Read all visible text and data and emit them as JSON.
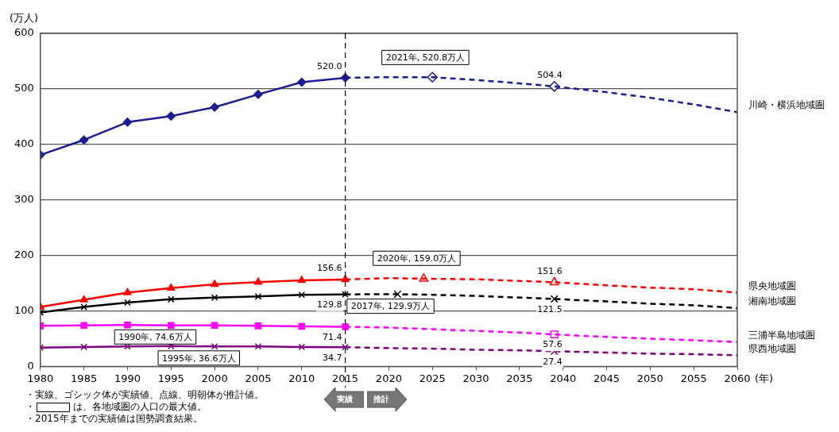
{
  "chart_data": {
    "type": "line",
    "ylabel": "(万人)",
    "xlabel": "(年)",
    "xlim": [
      1980,
      2060
    ],
    "xticks": [
      1980,
      1985,
      1990,
      1995,
      2000,
      2005,
      2010,
      2015,
      2020,
      2025,
      2030,
      2035,
      2040,
      2045,
      2050,
      2055,
      2060
    ],
    "ylim": [
      0,
      600
    ],
    "yticks": [
      0,
      100,
      200,
      300,
      400,
      500,
      600
    ],
    "grid": "y",
    "legend": false,
    "series": [
      {
        "color": "#1c1c94",
        "marker": "diamond",
        "line_style": "solid",
        "x": [
          1980,
          1985,
          1990,
          1995,
          2000,
          2005,
          2010,
          2015
        ],
        "values": [
          381,
          408,
          440,
          451,
          467,
          490,
          512,
          520.0
        ]
      },
      {
        "name": "川崎・横浜地域圏",
        "color": "#1c1c94",
        "marker": "none",
        "line_style": "dashed",
        "x": [
          2015,
          2020,
          2025,
          2030,
          2035,
          2039,
          2045,
          2050,
          2055,
          2060
        ],
        "values": [
          520.0,
          521,
          521,
          516,
          510,
          504.4,
          494,
          484,
          472,
          458
        ],
        "value_labels": [
          "520.0",
          null,
          null,
          null,
          null,
          "504.4",
          null,
          null,
          null,
          null
        ]
      },
      {
        "type": "scatter",
        "color": "#1c1c94",
        "marker": "diamond",
        "x": [
          2025,
          2039
        ],
        "values": [
          521,
          504.4
        ]
      },
      {
        "color": "#ff0000",
        "marker": "triangle",
        "line_style": "solid",
        "x": [
          1980,
          1985,
          1990,
          1995,
          2000,
          2005,
          2010,
          2015
        ],
        "values": [
          107,
          120,
          133,
          141,
          148,
          152,
          155,
          156.6
        ]
      },
      {
        "name": "県央地域圏",
        "color": "#ff0000",
        "marker": "none",
        "line_style": "dashed",
        "x": [
          2015,
          2020,
          2024,
          2030,
          2035,
          2039,
          2045,
          2050,
          2055,
          2060
        ],
        "values": [
          156.6,
          159.0,
          158,
          157,
          154,
          151.6,
          146,
          142,
          139,
          133
        ],
        "value_labels": [
          "156.6",
          null,
          null,
          null,
          null,
          "151.6",
          null,
          null,
          null,
          null
        ]
      },
      {
        "type": "scatter",
        "color": "#ff0000",
        "marker": "triangle",
        "x": [
          2024,
          2039
        ],
        "values": [
          158,
          151.6
        ]
      },
      {
        "color": "#000000",
        "marker": "cross",
        "line_style": "solid",
        "x": [
          1980,
          1985,
          1990,
          1995,
          2000,
          2005,
          2010,
          2015
        ],
        "values": [
          97,
          107,
          115,
          121,
          124,
          126,
          129,
          129.8
        ]
      },
      {
        "name": "湘南地域圏",
        "color": "#000000",
        "marker": "none",
        "line_style": "dashed",
        "x": [
          2015,
          2017,
          2021,
          2025,
          2030,
          2035,
          2039,
          2045,
          2050,
          2055,
          2060
        ],
        "values": [
          129.8,
          129.9,
          130,
          129,
          127,
          124,
          121.5,
          117,
          113,
          110,
          105
        ],
        "value_labels": [
          "129.8",
          null,
          null,
          null,
          null,
          null,
          "121.5",
          null,
          null,
          null,
          null
        ]
      },
      {
        "type": "scatter",
        "color": "#000000",
        "marker": "cross",
        "x": [
          2021,
          2039
        ],
        "values": [
          130,
          121.5
        ]
      },
      {
        "color": "#ff00ff",
        "marker": "square",
        "line_style": "solid",
        "x": [
          1980,
          1985,
          1990,
          1995,
          2000,
          2005,
          2010,
          2015
        ],
        "values": [
          73,
          74,
          74.6,
          74,
          74,
          73,
          72,
          71.4
        ]
      },
      {
        "name": "三浦半島地域圏",
        "color": "#ff00ff",
        "marker": "none",
        "line_style": "dashed",
        "x": [
          2015,
          2020,
          2025,
          2030,
          2035,
          2039,
          2045,
          2050,
          2055,
          2060
        ],
        "values": [
          71.4,
          70,
          67,
          64,
          61,
          57.6,
          53,
          50,
          47,
          44
        ],
        "value_labels": [
          "71.4",
          null,
          null,
          null,
          null,
          "57.6",
          null,
          null,
          null,
          null
        ]
      },
      {
        "type": "scatter",
        "color": "#ff00ff",
        "marker": "square",
        "x": [
          2039
        ],
        "values": [
          57.6
        ]
      },
      {
        "color": "#800080",
        "marker": "cross",
        "line_style": "solid",
        "x": [
          1980,
          1985,
          1990,
          1995,
          2000,
          2005,
          2010,
          2015
        ],
        "values": [
          34,
          35,
          36,
          36.6,
          36,
          36,
          35,
          34.7
        ]
      },
      {
        "name": "県西地域圏",
        "color": "#800080",
        "marker": "none",
        "line_style": "dashed",
        "x": [
          2015,
          2020,
          2025,
          2030,
          2035,
          2039,
          2045,
          2050,
          2055,
          2060
        ],
        "values": [
          34.7,
          33,
          32,
          30,
          29,
          27.4,
          25,
          23,
          22,
          20
        ],
        "value_labels": [
          "34.7",
          null,
          null,
          null,
          null,
          "27.4",
          null,
          null,
          null,
          null
        ]
      },
      {
        "type": "scatter",
        "color": "#800080",
        "marker": "cross",
        "x": [
          2039
        ],
        "values": [
          27.4
        ]
      }
    ],
    "ref_lines": [
      {
        "axis": "x",
        "value": 2015,
        "color": "#000000",
        "line_style": "dashed"
      }
    ],
    "annotations": [
      {
        "text": "2021年, 520.8万人",
        "x": 2021,
        "y": 520.8
      },
      {
        "text": "2020年, 159.0万人",
        "x": 2020,
        "y": 159.0
      },
      {
        "text": "2017年, 129.9万人",
        "x": 2017,
        "y": 129.9
      },
      {
        "text": "1990年, 74.6万人",
        "x": 1990,
        "y": 74.6
      },
      {
        "text": "1995年, 36.6万人",
        "x": 1995,
        "y": 36.6
      },
      "実績",
      "推計",
      "・実線、ゴシック体が実績値、点線、明朝体が推計値。",
      "・　　　　は、各地域圏の人口の最大値。",
      "・2015年までの実績値は国勢調査結果。"
    ]
  }
}
